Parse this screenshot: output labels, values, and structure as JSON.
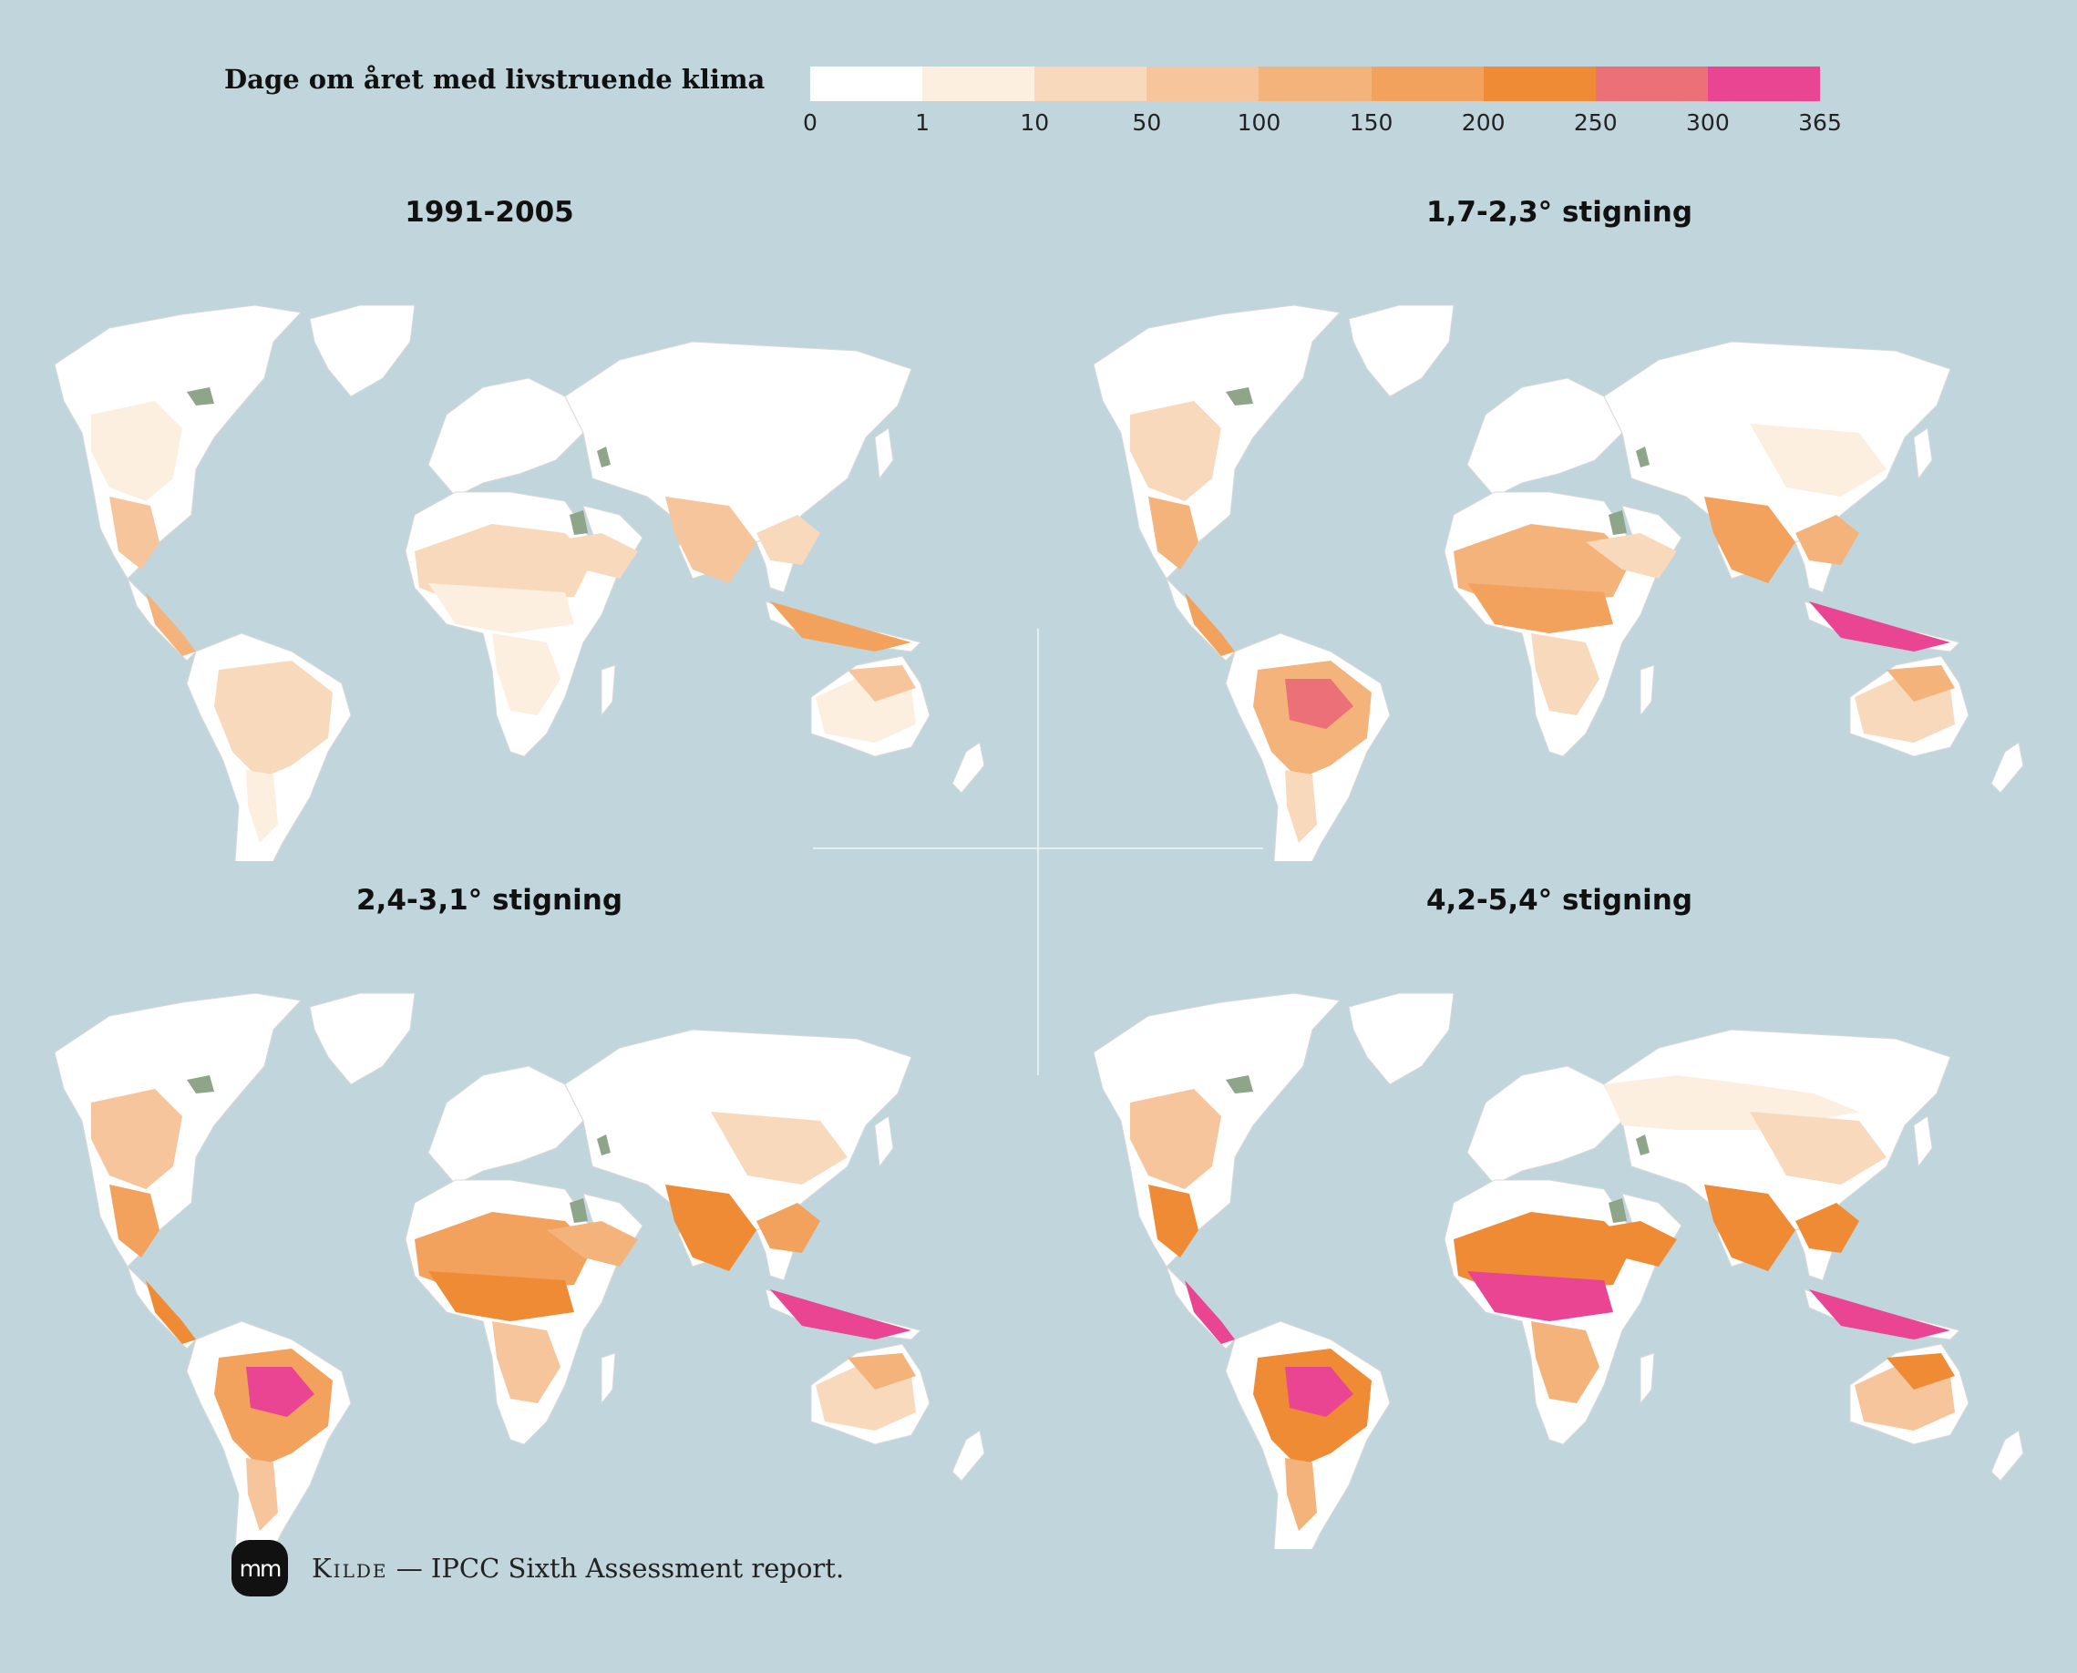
{
  "legend": {
    "title": "Dage om året med livstruende klima",
    "ticks": [
      "0",
      "1",
      "10",
      "50",
      "100",
      "150",
      "200",
      "250",
      "300",
      "365"
    ],
    "colors": [
      "#ffffff",
      "#fcefe0",
      "#f9d9bb",
      "#f7c59b",
      "#f4b37b",
      "#f2a25d",
      "#ef8b35",
      "#ec7077",
      "#e94593"
    ]
  },
  "panels": [
    {
      "title": "1991-2005",
      "level": 0
    },
    {
      "title": "1,7-2,3° stigning",
      "level": 1
    },
    {
      "title": "2,4-3,1° stigning",
      "level": 2
    },
    {
      "title": "4,2-5,4° stigning",
      "level": 3
    }
  ],
  "footer": {
    "logo_text": "mm",
    "source_label": "Kilde",
    "source_text": "— IPCC Sixth Assessment report."
  },
  "colors": {
    "background": "#c1d5dc",
    "land": "#ffffff",
    "lake": "#8fa58a"
  }
}
